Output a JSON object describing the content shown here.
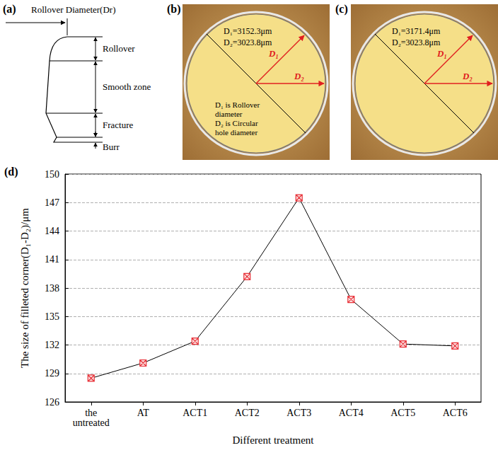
{
  "panels": {
    "a": {
      "letter": "(a)",
      "top_label": "Rollover Diameter(Dr)",
      "zones": [
        "Rollover",
        "Smooth zone",
        "Fracture",
        "Burr"
      ]
    },
    "b": {
      "letter": "(b)",
      "d1_text": "D₁=3152.3μm",
      "d2_text": "D₂=3023.8μm",
      "d1_arrow": "D₁",
      "d2_arrow": "D₂",
      "notes": [
        "D₁ is Rollover diameter",
        "D₂ is Circular hole diameter"
      ]
    },
    "c": {
      "letter": "(c)",
      "d1_text": "D₁=3171.4μm",
      "d2_text": "D₂=3023.8μm",
      "d1_arrow": "D₁",
      "d2_arrow": "D₂"
    },
    "d": {
      "letter": "(d)"
    }
  },
  "chart_data": {
    "type": "line",
    "x_label": "Different treatment",
    "y_label": "The size of filleted corner(D₁-D₂)/μm",
    "categories": [
      "the untreated",
      "AT",
      "ACT1",
      "ACT2",
      "ACT3",
      "ACT4",
      "ACT5",
      "ACT6"
    ],
    "values": [
      128.5,
      130.1,
      132.4,
      139.2,
      147.5,
      136.8,
      132.1,
      131.9
    ],
    "color": "#e8333a",
    "marker": "square",
    "line_style": "solid",
    "ylim": [
      126,
      150
    ],
    "yticks": [
      126,
      129,
      132,
      135,
      138,
      141,
      144,
      147,
      150
    ],
    "grid": true
  }
}
